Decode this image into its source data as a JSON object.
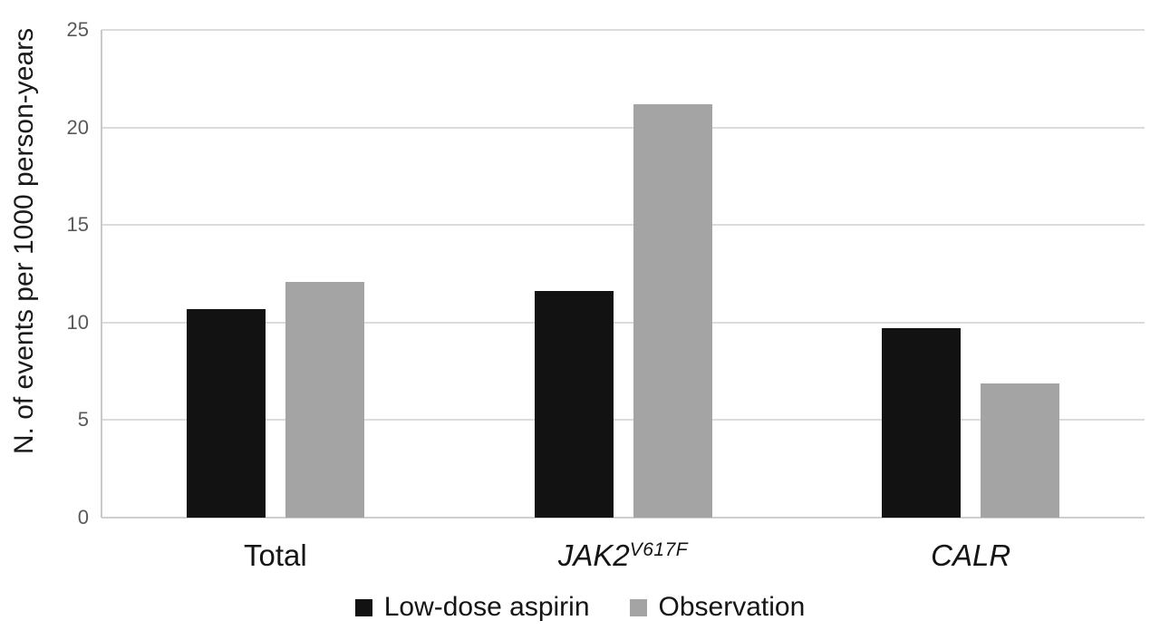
{
  "figure": {
    "background": "#ffffff"
  },
  "chart_data": {
    "type": "bar",
    "title": "",
    "ylabel": "N. of events per 1000 person-years",
    "xlabel": "",
    "ylim": [
      0,
      25
    ],
    "yticks": [
      0,
      5,
      10,
      15,
      20,
      25
    ],
    "grid": true,
    "legend_position": "bottom",
    "categories": [
      {
        "label": "Total",
        "italic": false,
        "superscript": ""
      },
      {
        "label": "JAK2",
        "italic": true,
        "superscript": "V617F"
      },
      {
        "label": "CALR",
        "italic": true,
        "superscript": ""
      }
    ],
    "series": [
      {
        "name": "Low-dose aspirin",
        "color": "#121212",
        "values": [
          10.7,
          11.6,
          9.7
        ]
      },
      {
        "name": "Observation",
        "color": "#a4a4a4",
        "values": [
          12.1,
          21.2,
          6.9
        ]
      }
    ],
    "gridline_color": "#dcdcdc",
    "baseline_color": "#cfcfcf",
    "axis_line_color": "#c8c8c8",
    "tick_label_color": "#595959",
    "text_color": "#1a1a1a"
  }
}
